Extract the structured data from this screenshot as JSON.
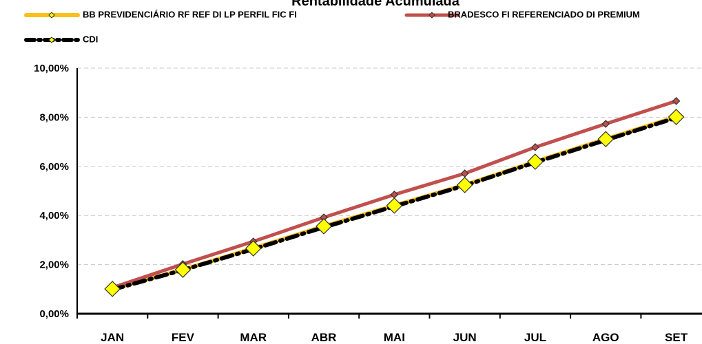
{
  "chart_data": {
    "type": "line",
    "title": "Rentabilidade Acumulada",
    "categories": [
      "JAN",
      "FEV",
      "MAR",
      "ABR",
      "MAI",
      "JUN",
      "JUL",
      "AGO",
      "SET"
    ],
    "series": [
      {
        "name": "BB PREVIDENCIÁRIO RF REF DI LP PERFIL FIC FI",
        "color": "#f9c01a",
        "values": [
          1.01,
          1.79,
          2.66,
          3.56,
          4.4,
          5.24,
          6.19,
          7.11,
          8.01
        ]
      },
      {
        "name": "BRADESCO FI REFERENCIADO DI PREMIUM",
        "color": "#c0504d",
        "values": [
          1.06,
          2.02,
          2.94,
          3.92,
          4.85,
          5.71,
          6.78,
          7.73,
          8.66
        ]
      },
      {
        "name": "CDI",
        "color": "#000000",
        "values": [
          0.98,
          1.78,
          2.63,
          3.52,
          4.37,
          5.22,
          6.16,
          7.07,
          7.98
        ]
      }
    ],
    "ylim": [
      0,
      10
    ],
    "yticks": [
      {
        "value": 0,
        "label": "0,00%"
      },
      {
        "value": 2,
        "label": "2,00%"
      },
      {
        "value": 4,
        "label": "4,00%"
      },
      {
        "value": 6,
        "label": "6,00%"
      },
      {
        "value": 8,
        "label": "8,00%"
      },
      {
        "value": 10,
        "label": "10,00%"
      }
    ],
    "grid": true
  }
}
